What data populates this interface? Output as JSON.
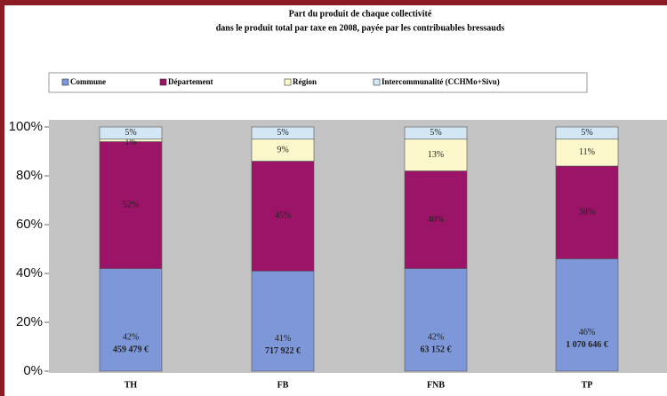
{
  "chart_data": {
    "type": "stacked_bar",
    "title": [
      "Part du produit de chaque collectivité",
      "dans le produit total par taxe en 2008, payée par les contribuables bressauds"
    ],
    "categories": [
      "TH",
      "FB",
      "FNB",
      "TP"
    ],
    "series": [
      {
        "name": "Commune",
        "color": "#7d97d8",
        "values": [
          42,
          41,
          42,
          46
        ],
        "value_labels": [
          "42%",
          "41%",
          "42%",
          "46%"
        ],
        "amounts": [
          "459 479 €",
          "717 922 €",
          "63 152 €",
          "1 070 646 €"
        ]
      },
      {
        "name": "Département",
        "color": "#9c1468",
        "values": [
          52,
          45,
          40,
          38
        ],
        "value_labels": [
          "52%",
          "45%",
          "40%",
          "38%"
        ]
      },
      {
        "name": "Région",
        "color": "#fdf8cc",
        "values": [
          1,
          9,
          13,
          11
        ],
        "value_labels": [
          "1%",
          "9%",
          "13%",
          "11%"
        ]
      },
      {
        "name": "Intercommunalité (CCHMo+Sivu)",
        "color": "#d2e6f4",
        "values": [
          5,
          5,
          5,
          5
        ],
        "value_labels": [
          "5%",
          "5%",
          "5%",
          "5%"
        ]
      }
    ],
    "ylim": [
      0,
      100
    ],
    "yticks": [
      {
        "value": 0,
        "label": "0%"
      },
      {
        "value": 20,
        "label": "20%"
      },
      {
        "value": 40,
        "label": "40%"
      },
      {
        "value": 60,
        "label": "60%"
      },
      {
        "value": 80,
        "label": "80%"
      },
      {
        "value": 100,
        "label": "100%"
      }
    ],
    "legend": "top"
  }
}
